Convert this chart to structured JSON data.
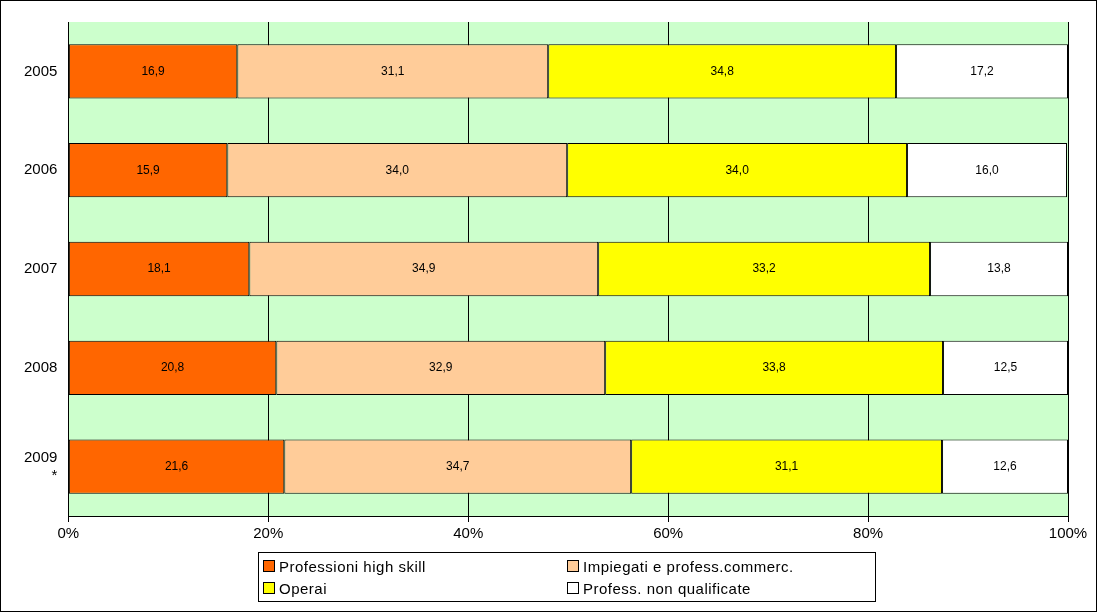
{
  "chart_data": {
    "type": "bar",
    "orientation": "horizontal",
    "stacked": true,
    "categories": [
      "2005",
      "2006",
      "2007",
      "2008",
      "2009\n*"
    ],
    "series": [
      {
        "name": "Professioni high skill",
        "color": "#ff6600",
        "values": [
          16.9,
          15.9,
          18.1,
          20.8,
          21.6
        ],
        "value_labels": [
          "16,9",
          "15,9",
          "18,1",
          "20,8",
          "21,6"
        ]
      },
      {
        "name": "Impiegati e profess.commerc.",
        "color": "#ffcc99",
        "values": [
          31.1,
          34.0,
          34.9,
          32.9,
          34.7
        ],
        "value_labels": [
          "31,1",
          "34,0",
          "34,9",
          "32,9",
          "34,7"
        ]
      },
      {
        "name": "Operai",
        "color": "#ffff00",
        "values": [
          34.8,
          34.0,
          33.2,
          33.8,
          31.1
        ],
        "value_labels": [
          "34,8",
          "34,0",
          "33,2",
          "33,8",
          "31,1"
        ]
      },
      {
        "name": "Profess. non qualificate",
        "color": "#ffffff",
        "values": [
          17.2,
          16.0,
          13.8,
          12.5,
          12.6
        ],
        "value_labels": [
          "17,2",
          "16,0",
          "13,8",
          "12,5",
          "12,6"
        ]
      }
    ],
    "xlim": [
      0,
      100
    ],
    "xticks": [
      {
        "value": 0,
        "label": "0%"
      },
      {
        "value": 20,
        "label": "20%"
      },
      {
        "value": 40,
        "label": "40%"
      },
      {
        "value": 60,
        "label": "60%"
      },
      {
        "value": 80,
        "label": "80%"
      },
      {
        "value": 100,
        "label": "100%"
      }
    ],
    "grid": "x",
    "legend": "bottom"
  }
}
